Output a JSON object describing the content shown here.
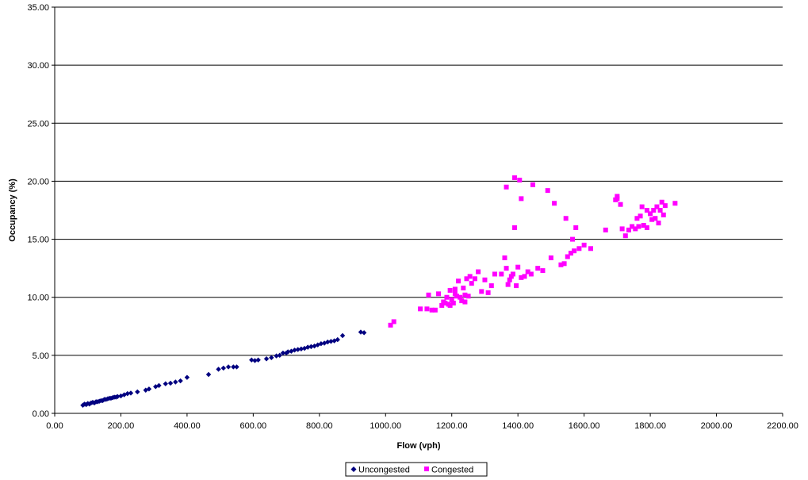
{
  "chart_data": {
    "type": "scatter",
    "title": "",
    "xlabel": "Flow (vph)",
    "ylabel": "Occupancy (%)",
    "xlim": [
      0,
      2200
    ],
    "ylim": [
      0,
      35
    ],
    "xticks": [
      0,
      200,
      400,
      600,
      800,
      1000,
      1200,
      1400,
      1600,
      1800,
      2000,
      2200
    ],
    "yticks": [
      0,
      5,
      10,
      15,
      20,
      25,
      30,
      35
    ],
    "xtick_labels": [
      "0.00",
      "200.00",
      "400.00",
      "600.00",
      "800.00",
      "1000.00",
      "1200.00",
      "1400.00",
      "1600.00",
      "1800.00",
      "2000.00",
      "2200.00"
    ],
    "ytick_labels": [
      "0.00",
      "5.00",
      "10.00",
      "15.00",
      "20.00",
      "25.00",
      "30.00",
      "35.00"
    ],
    "grid": "horizontal",
    "legend_position": "bottom",
    "series": [
      {
        "name": "Uncongested",
        "color": "#000080",
        "marker": "diamond",
        "points": [
          [
            85,
            0.7
          ],
          [
            90,
            0.8
          ],
          [
            95,
            0.75
          ],
          [
            100,
            0.85
          ],
          [
            105,
            0.8
          ],
          [
            110,
            0.9
          ],
          [
            115,
            0.95
          ],
          [
            120,
            0.9
          ],
          [
            125,
            1.0
          ],
          [
            130,
            1.0
          ],
          [
            135,
            1.05
          ],
          [
            140,
            1.1
          ],
          [
            145,
            1.1
          ],
          [
            150,
            1.2
          ],
          [
            155,
            1.2
          ],
          [
            160,
            1.25
          ],
          [
            165,
            1.3
          ],
          [
            170,
            1.3
          ],
          [
            175,
            1.35
          ],
          [
            180,
            1.4
          ],
          [
            185,
            1.4
          ],
          [
            190,
            1.45
          ],
          [
            200,
            1.5
          ],
          [
            210,
            1.6
          ],
          [
            220,
            1.7
          ],
          [
            230,
            1.75
          ],
          [
            250,
            1.85
          ],
          [
            275,
            2.0
          ],
          [
            285,
            2.1
          ],
          [
            305,
            2.3
          ],
          [
            315,
            2.4
          ],
          [
            335,
            2.55
          ],
          [
            350,
            2.6
          ],
          [
            365,
            2.7
          ],
          [
            380,
            2.8
          ],
          [
            400,
            3.1
          ],
          [
            465,
            3.35
          ],
          [
            495,
            3.8
          ],
          [
            510,
            3.9
          ],
          [
            525,
            4.0
          ],
          [
            540,
            4.0
          ],
          [
            550,
            4.0
          ],
          [
            595,
            4.6
          ],
          [
            605,
            4.55
          ],
          [
            615,
            4.6
          ],
          [
            640,
            4.7
          ],
          [
            655,
            4.8
          ],
          [
            670,
            4.95
          ],
          [
            680,
            5.0
          ],
          [
            690,
            5.2
          ],
          [
            700,
            5.2
          ],
          [
            705,
            5.3
          ],
          [
            715,
            5.35
          ],
          [
            725,
            5.45
          ],
          [
            735,
            5.5
          ],
          [
            745,
            5.55
          ],
          [
            755,
            5.6
          ],
          [
            765,
            5.7
          ],
          [
            775,
            5.75
          ],
          [
            785,
            5.8
          ],
          [
            795,
            5.9
          ],
          [
            805,
            6.0
          ],
          [
            815,
            6.05
          ],
          [
            825,
            6.15
          ],
          [
            835,
            6.2
          ],
          [
            845,
            6.25
          ],
          [
            855,
            6.35
          ],
          [
            870,
            6.7
          ],
          [
            925,
            7.0
          ],
          [
            935,
            6.95
          ]
        ]
      },
      {
        "name": "Congested",
        "color": "#FF00FF",
        "marker": "square",
        "points": [
          [
            1015,
            7.6
          ],
          [
            1025,
            7.9
          ],
          [
            1105,
            9.0
          ],
          [
            1125,
            9.0
          ],
          [
            1130,
            10.2
          ],
          [
            1140,
            8.9
          ],
          [
            1150,
            8.9
          ],
          [
            1160,
            10.3
          ],
          [
            1170,
            9.3
          ],
          [
            1175,
            9.6
          ],
          [
            1180,
            9.5
          ],
          [
            1185,
            10.0
          ],
          [
            1190,
            9.4
          ],
          [
            1195,
            10.6
          ],
          [
            1200,
            9.8
          ],
          [
            1205,
            9.5
          ],
          [
            1210,
            10.3
          ],
          [
            1215,
            10.1
          ],
          [
            1220,
            11.4
          ],
          [
            1225,
            10.0
          ],
          [
            1230,
            9.7
          ],
          [
            1235,
            10.8
          ],
          [
            1240,
            10.2
          ],
          [
            1245,
            11.6
          ],
          [
            1250,
            10.1
          ],
          [
            1255,
            11.8
          ],
          [
            1260,
            11.2
          ],
          [
            1270,
            11.6
          ],
          [
            1280,
            12.2
          ],
          [
            1290,
            10.5
          ],
          [
            1300,
            11.5
          ],
          [
            1310,
            10.4
          ],
          [
            1320,
            11.0
          ],
          [
            1330,
            12.0
          ],
          [
            1350,
            12.0
          ],
          [
            1360,
            13.4
          ],
          [
            1365,
            12.5
          ],
          [
            1370,
            11.1
          ],
          [
            1375,
            11.5
          ],
          [
            1380,
            11.8
          ],
          [
            1385,
            12.0
          ],
          [
            1395,
            11.0
          ],
          [
            1400,
            12.6
          ],
          [
            1410,
            11.7
          ],
          [
            1420,
            11.8
          ],
          [
            1430,
            12.2
          ],
          [
            1440,
            12.0
          ],
          [
            1460,
            12.5
          ],
          [
            1475,
            12.3
          ],
          [
            1500,
            13.4
          ],
          [
            1530,
            12.8
          ],
          [
            1540,
            12.9
          ],
          [
            1550,
            13.5
          ],
          [
            1560,
            13.8
          ],
          [
            1570,
            14.0
          ],
          [
            1585,
            14.2
          ],
          [
            1600,
            14.5
          ],
          [
            1620,
            14.2
          ],
          [
            1365,
            19.5
          ],
          [
            1390,
            20.3
          ],
          [
            1405,
            20.1
          ],
          [
            1410,
            18.5
          ],
          [
            1390,
            16.0
          ],
          [
            1445,
            19.7
          ],
          [
            1490,
            19.2
          ],
          [
            1510,
            18.1
          ],
          [
            1545,
            16.8
          ],
          [
            1565,
            15.0
          ],
          [
            1575,
            16.0
          ],
          [
            1665,
            15.8
          ],
          [
            1695,
            18.4
          ],
          [
            1700,
            18.7
          ],
          [
            1710,
            18.0
          ],
          [
            1715,
            15.9
          ],
          [
            1725,
            15.3
          ],
          [
            1735,
            15.8
          ],
          [
            1745,
            16.1
          ],
          [
            1755,
            15.9
          ],
          [
            1765,
            16.1
          ],
          [
            1770,
            17.0
          ],
          [
            1775,
            17.8
          ],
          [
            1780,
            16.2
          ],
          [
            1790,
            17.5
          ],
          [
            1800,
            17.2
          ],
          [
            1805,
            16.7
          ],
          [
            1810,
            17.5
          ],
          [
            1815,
            16.8
          ],
          [
            1820,
            17.8
          ],
          [
            1825,
            16.4
          ],
          [
            1830,
            17.5
          ],
          [
            1835,
            18.2
          ],
          [
            1840,
            17.1
          ],
          [
            1845,
            17.9
          ],
          [
            1875,
            18.1
          ],
          [
            1700,
            18.5
          ],
          [
            1790,
            16.0
          ],
          [
            1760,
            16.8
          ],
          [
            1210,
            10.7
          ],
          [
            1240,
            9.6
          ],
          [
            1195,
            9.3
          ]
        ]
      }
    ]
  }
}
